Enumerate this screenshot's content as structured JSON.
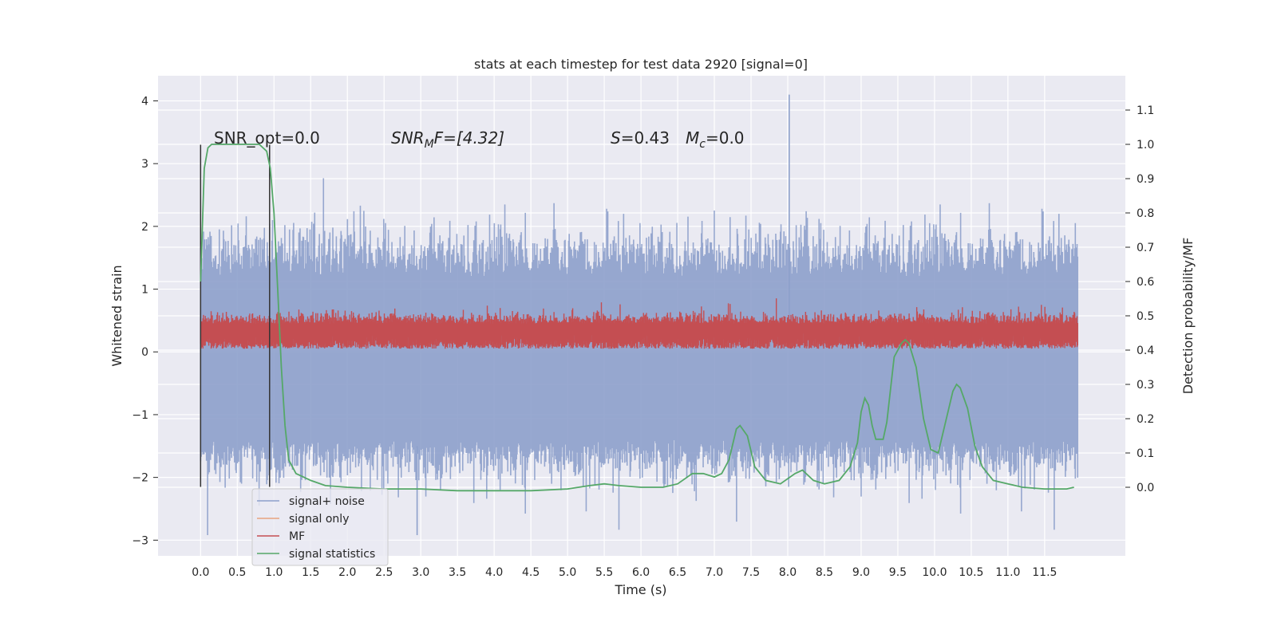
{
  "chart_data": {
    "type": "line",
    "title": "stats at each timestep for test data 2920 [signal=0]",
    "xlabel": "Time (s)",
    "ylabel": "Whitened strain",
    "y2label": "Detection probability/MF",
    "xlim": [
      -0.58,
      12.6
    ],
    "ylim": [
      -3.25,
      4.4
    ],
    "y2lim": [
      -0.2,
      1.2
    ],
    "grid": true,
    "legend_position": "bottom-left",
    "x_ticks": [
      "0.0",
      "0.5",
      "1.0",
      "1.5",
      "2.0",
      "2.5",
      "3.0",
      "3.5",
      "4.0",
      "4.5",
      "5.0",
      "5.5",
      "6.0",
      "6.5",
      "7.0",
      "7.5",
      "8.0",
      "8.5",
      "9.0",
      "9.5",
      "10.0",
      "10.5",
      "11.0",
      "11.5"
    ],
    "y_ticks": [
      "−3",
      "−2",
      "−1",
      "0",
      "1",
      "2",
      "3",
      "4"
    ],
    "y2_ticks": [
      "0.0",
      "0.1",
      "0.2",
      "0.3",
      "0.4",
      "0.5",
      "0.6",
      "0.7",
      "0.8",
      "0.9",
      "1.0",
      "1.1"
    ],
    "annotations": {
      "snr_opt": "SNR_opt=0.0",
      "snr_mf_sym": "SNR",
      "snr_mf_sub": "M",
      "snr_mf_rest": "F=[4.32]",
      "s_sym": "S",
      "s_val": "=0.43",
      "mc_sym": "M",
      "mc_sub": "c",
      "mc_val": "=0.0"
    },
    "markers": {
      "vlines_x": [
        0.0,
        0.94
      ],
      "vline_ymin": -2.15,
      "vline_ymax": 3.3
    },
    "series": [
      {
        "name": "signal+ noise",
        "color": "#8da0cb",
        "envelope": {
          "x_range": [
            0.0,
            11.95
          ],
          "y_median_hi": 1.2,
          "y_median_lo": -1.4,
          "y_peak_hi": 4.1,
          "y_peak_lo": -2.92
        }
      },
      {
        "name": "signal only",
        "color": "#e8a37f",
        "values": []
      },
      {
        "name": "MF",
        "color": "#c44e52",
        "envelope": {
          "x_range": [
            0.0,
            11.95
          ],
          "y_lo": 0.05,
          "y_hi": 0.55,
          "y_peak": 1.0
        }
      },
      {
        "name": "signal statistics",
        "color": "#55a868",
        "x": [
          0.0,
          0.05,
          0.1,
          0.15,
          0.2,
          0.3,
          0.4,
          0.5,
          0.6,
          0.7,
          0.8,
          0.9,
          0.95,
          1.0,
          1.05,
          1.1,
          1.15,
          1.2,
          1.3,
          1.4,
          1.5,
          1.7,
          2.0,
          2.5,
          3.0,
          3.5,
          4.0,
          4.5,
          5.0,
          5.3,
          5.5,
          5.7,
          6.0,
          6.3,
          6.5,
          6.7,
          6.85,
          7.0,
          7.1,
          7.2,
          7.3,
          7.35,
          7.45,
          7.55,
          7.7,
          7.9,
          8.1,
          8.2,
          8.35,
          8.5,
          8.7,
          8.85,
          8.95,
          9.0,
          9.05,
          9.1,
          9.15,
          9.2,
          9.3,
          9.35,
          9.45,
          9.55,
          9.6,
          9.65,
          9.75,
          9.85,
          9.95,
          10.05,
          10.15,
          10.25,
          10.3,
          10.35,
          10.45,
          10.55,
          10.65,
          10.8,
          11.0,
          11.2,
          11.5,
          11.8,
          11.9
        ],
        "y2": [
          0.6,
          0.93,
          0.99,
          1.0,
          1.0,
          1.0,
          1.0,
          1.0,
          1.0,
          1.0,
          1.0,
          0.98,
          0.93,
          0.8,
          0.58,
          0.35,
          0.18,
          0.08,
          0.04,
          0.03,
          0.02,
          0.005,
          0.0,
          -0.005,
          -0.005,
          -0.01,
          -0.01,
          -0.01,
          -0.005,
          0.005,
          0.01,
          0.005,
          0.0,
          0.0,
          0.01,
          0.04,
          0.04,
          0.03,
          0.04,
          0.08,
          0.17,
          0.18,
          0.15,
          0.06,
          0.02,
          0.01,
          0.04,
          0.05,
          0.02,
          0.01,
          0.02,
          0.06,
          0.13,
          0.22,
          0.26,
          0.24,
          0.18,
          0.14,
          0.14,
          0.19,
          0.38,
          0.42,
          0.43,
          0.42,
          0.35,
          0.2,
          0.11,
          0.1,
          0.19,
          0.28,
          0.3,
          0.29,
          0.23,
          0.12,
          0.06,
          0.02,
          0.01,
          0.0,
          -0.005,
          -0.005,
          0.0
        ]
      }
    ]
  }
}
